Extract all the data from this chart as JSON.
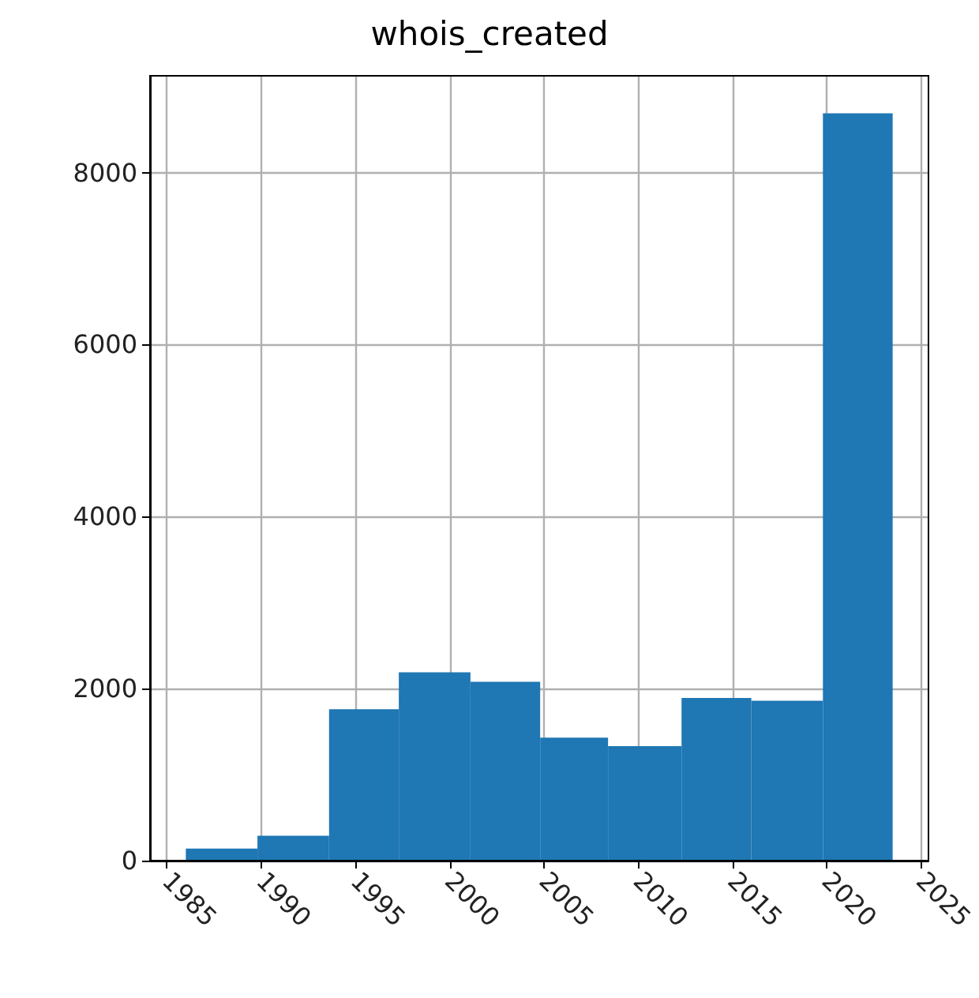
{
  "chart_data": {
    "type": "histogram",
    "title": "whois_created",
    "bins": [
      1986.0,
      1989.8,
      1993.6,
      1997.3,
      2001.1,
      2004.8,
      2008.4,
      2012.3,
      2016.0,
      2019.8,
      2023.5
    ],
    "values": [
      140,
      290,
      1760,
      2190,
      2080,
      1430,
      1330,
      1890,
      1860,
      8690
    ],
    "color": "#1f77b4",
    "xlim": [
      1984.1,
      2025.4
    ],
    "xticks": [
      1985,
      1990,
      1995,
      2000,
      2005,
      2010,
      2015,
      2020,
      2025
    ],
    "ylim": [
      0,
      9125
    ],
    "yticks": [
      0,
      2000,
      4000,
      6000,
      8000
    ],
    "grid": true
  }
}
